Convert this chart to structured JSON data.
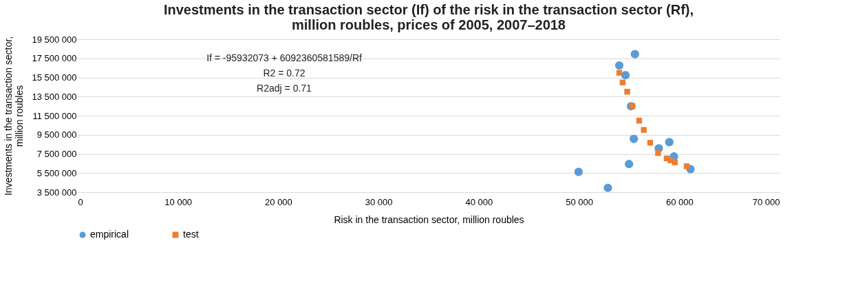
{
  "chart_data": {
    "type": "scatter",
    "title": [
      "Investments in the transaction sector (If) of the risk in the transaction sector (Rf),",
      "million roubles, prices of 2005, 2007–2018"
    ],
    "xlabel": "Risk in the transaction sector, million roubles",
    "ylabel": [
      "Investments in the transaction sector,",
      "million roubles"
    ],
    "series": [
      {
        "name": "empirical",
        "color": "#5b9bd5",
        "marker": "circle",
        "x": [
          55570,
          54010,
          54630,
          55180,
          55460,
          59000,
          57950,
          59460,
          54980,
          61110,
          49950,
          52870
        ],
        "values": [
          17940000,
          16760000,
          15740000,
          12490000,
          9080000,
          8740000,
          8080000,
          7230000,
          6440000,
          5910000,
          5620000,
          3950000
        ]
      },
      {
        "name": "test",
        "color": "#ed7d31",
        "marker": "square",
        "x": [
          54010,
          54340,
          54800,
          55330,
          55990,
          56450,
          57090,
          57880,
          58740,
          59130,
          59550,
          60730
        ],
        "values": [
          15990000,
          14980000,
          14010000,
          12520000,
          10980000,
          10010000,
          8670000,
          7590000,
          7030000,
          6820000,
          6620000,
          6210000
        ]
      }
    ],
    "annotations": [
      "If = -95932073 + 6092360581589/Rf",
      "R2 = 0.72",
      "R2adj = 0.71"
    ],
    "xlim": [
      0,
      70000
    ],
    "xticks": [
      0,
      {
        "value": 10000,
        "label": "10 000"
      },
      {
        "value": 20000,
        "label": "20 000"
      },
      {
        "value": 30000,
        "label": "30 000"
      },
      {
        "value": 40000,
        "label": "40 000"
      },
      {
        "value": 50000,
        "label": "50 000"
      },
      {
        "value": 60000,
        "label": "60 000"
      },
      {
        "value": 70000,
        "label": "70 000"
      }
    ],
    "ylim": [
      3500000,
      19500000
    ],
    "yticks": [
      {
        "value": 3500000,
        "label": "3 500 000"
      },
      {
        "value": 5500000,
        "label": "5 500 000"
      },
      {
        "value": 7500000,
        "label": "7 500 000"
      },
      {
        "value": 9500000,
        "label": "9 500 000"
      },
      {
        "value": 11500000,
        "label": "11 500 000"
      },
      {
        "value": 13500000,
        "label": "13 500 000"
      },
      {
        "value": 15500000,
        "label": "15 500 000"
      },
      {
        "value": 17500000,
        "label": "17 500 000"
      },
      {
        "value": 19500000,
        "label": "19 500 000"
      }
    ],
    "grid": "y",
    "legend": "bottom"
  }
}
